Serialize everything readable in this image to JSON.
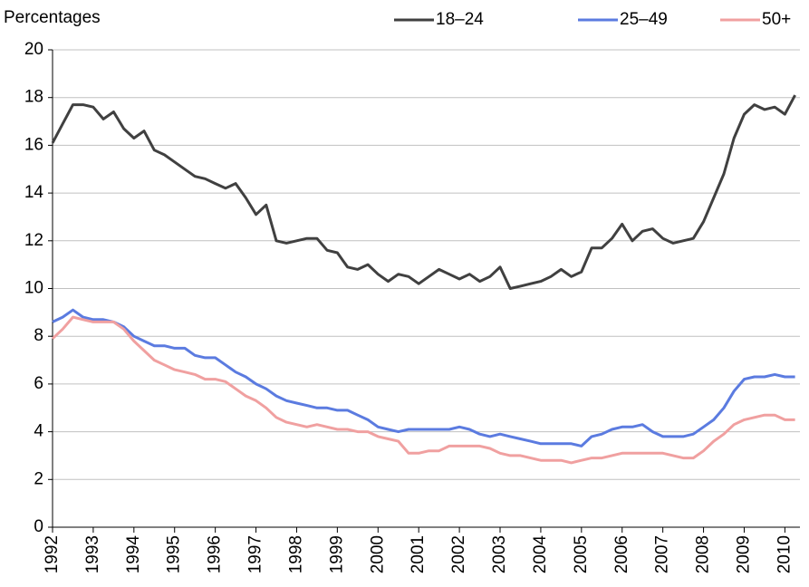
{
  "chart_data": {
    "type": "line",
    "y_label": "Percentages",
    "x": [
      1992,
      1992.25,
      1992.5,
      1992.75,
      1993,
      1993.25,
      1993.5,
      1993.75,
      1994,
      1994.25,
      1994.5,
      1994.75,
      1995,
      1995.25,
      1995.5,
      1995.75,
      1996,
      1996.25,
      1996.5,
      1996.75,
      1997,
      1997.25,
      1997.5,
      1997.75,
      1998,
      1998.25,
      1998.5,
      1998.75,
      1999,
      1999.25,
      1999.5,
      1999.75,
      2000,
      2000.25,
      2000.5,
      2000.75,
      2001,
      2001.25,
      2001.5,
      2001.75,
      2002,
      2002.25,
      2002.5,
      2002.75,
      2003,
      2003.25,
      2003.5,
      2003.75,
      2004,
      2004.25,
      2004.5,
      2004.75,
      2005,
      2005.25,
      2005.5,
      2005.75,
      2006,
      2006.25,
      2006.5,
      2006.75,
      2007,
      2007.25,
      2007.5,
      2007.75,
      2008,
      2008.25,
      2008.5,
      2008.75,
      2009,
      2009.25,
      2009.5,
      2009.75,
      2010,
      2010.25
    ],
    "series": [
      {
        "name": "18–24",
        "color": "#404040",
        "values": [
          16.1,
          16.9,
          17.7,
          17.7,
          17.6,
          17.1,
          17.4,
          16.7,
          16.3,
          16.6,
          15.8,
          15.6,
          15.3,
          15.0,
          14.7,
          14.6,
          14.4,
          14.2,
          14.4,
          13.8,
          13.1,
          13.5,
          12.0,
          11.9,
          12.0,
          12.1,
          12.1,
          11.6,
          11.5,
          10.9,
          10.8,
          11.0,
          10.6,
          10.3,
          10.6,
          10.5,
          10.2,
          10.5,
          10.8,
          10.6,
          10.4,
          10.6,
          10.3,
          10.5,
          10.9,
          10.0,
          10.1,
          10.2,
          10.3,
          10.5,
          10.8,
          10.5,
          10.7,
          11.7,
          11.7,
          12.1,
          12.7,
          12.0,
          12.4,
          12.5,
          12.1,
          11.9,
          12.0,
          12.1,
          12.8,
          13.8,
          14.8,
          16.3,
          17.3,
          17.7,
          17.5,
          17.6,
          17.3,
          18.1
        ]
      },
      {
        "name": "25–49",
        "color": "#5b7be0",
        "values": [
          8.6,
          8.8,
          9.1,
          8.8,
          8.7,
          8.7,
          8.6,
          8.4,
          8.0,
          7.8,
          7.6,
          7.6,
          7.5,
          7.5,
          7.2,
          7.1,
          7.1,
          6.8,
          6.5,
          6.3,
          6.0,
          5.8,
          5.5,
          5.3,
          5.2,
          5.1,
          5.0,
          5.0,
          4.9,
          4.9,
          4.7,
          4.5,
          4.2,
          4.1,
          4.0,
          4.1,
          4.1,
          4.1,
          4.1,
          4.1,
          4.2,
          4.1,
          3.9,
          3.8,
          3.9,
          3.8,
          3.7,
          3.6,
          3.5,
          3.5,
          3.5,
          3.5,
          3.4,
          3.8,
          3.9,
          4.1,
          4.2,
          4.2,
          4.3,
          4.0,
          3.8,
          3.8,
          3.8,
          3.9,
          4.2,
          4.5,
          5.0,
          5.7,
          6.2,
          6.3,
          6.3,
          6.4,
          6.3,
          6.3
        ]
      },
      {
        "name": "50+",
        "color": "#f0a0a0",
        "values": [
          7.9,
          8.3,
          8.8,
          8.7,
          8.6,
          8.6,
          8.6,
          8.3,
          7.8,
          7.4,
          7.0,
          6.8,
          6.6,
          6.5,
          6.4,
          6.2,
          6.2,
          6.1,
          5.8,
          5.5,
          5.3,
          5.0,
          4.6,
          4.4,
          4.3,
          4.2,
          4.3,
          4.2,
          4.1,
          4.1,
          4.0,
          4.0,
          3.8,
          3.7,
          3.6,
          3.1,
          3.1,
          3.2,
          3.2,
          3.4,
          3.4,
          3.4,
          3.4,
          3.3,
          3.1,
          3.0,
          3.0,
          2.9,
          2.8,
          2.8,
          2.8,
          2.7,
          2.8,
          2.9,
          2.9,
          3.0,
          3.1,
          3.1,
          3.1,
          3.1,
          3.1,
          3.0,
          2.9,
          2.9,
          3.2,
          3.6,
          3.9,
          4.3,
          4.5,
          4.6,
          4.7,
          4.7,
          4.5,
          4.5
        ]
      }
    ],
    "xlim": [
      1992,
      2010.37
    ],
    "xticks": [
      1992,
      1993,
      1994,
      1995,
      1996,
      1997,
      1998,
      1999,
      2000,
      2001,
      2002,
      2003,
      2004,
      2005,
      2006,
      2007,
      2008,
      2009,
      2010
    ],
    "ylim": [
      0,
      20
    ],
    "yticks": [
      0,
      2,
      4,
      6,
      8,
      10,
      12,
      14,
      16,
      18,
      20
    ],
    "grid": true,
    "legend": "top-right"
  }
}
